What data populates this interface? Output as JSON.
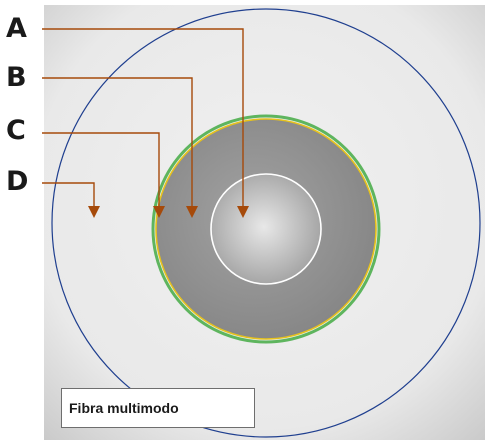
{
  "letters": {
    "a": "A",
    "b": "B",
    "c": "C",
    "d": "D"
  },
  "caption": "Fibra multimodo",
  "colors": {
    "arrow": "#a64a0a",
    "outer_circle": "#1f3f8f",
    "coating_green": "#5eb55e",
    "coating_yellow": "#e6c21c",
    "core_outline": "#ffffff",
    "cladding_fill": "#8e8e8e",
    "background": "#ededed"
  },
  "icons": {
    "arrow_head": "down-triangle"
  }
}
